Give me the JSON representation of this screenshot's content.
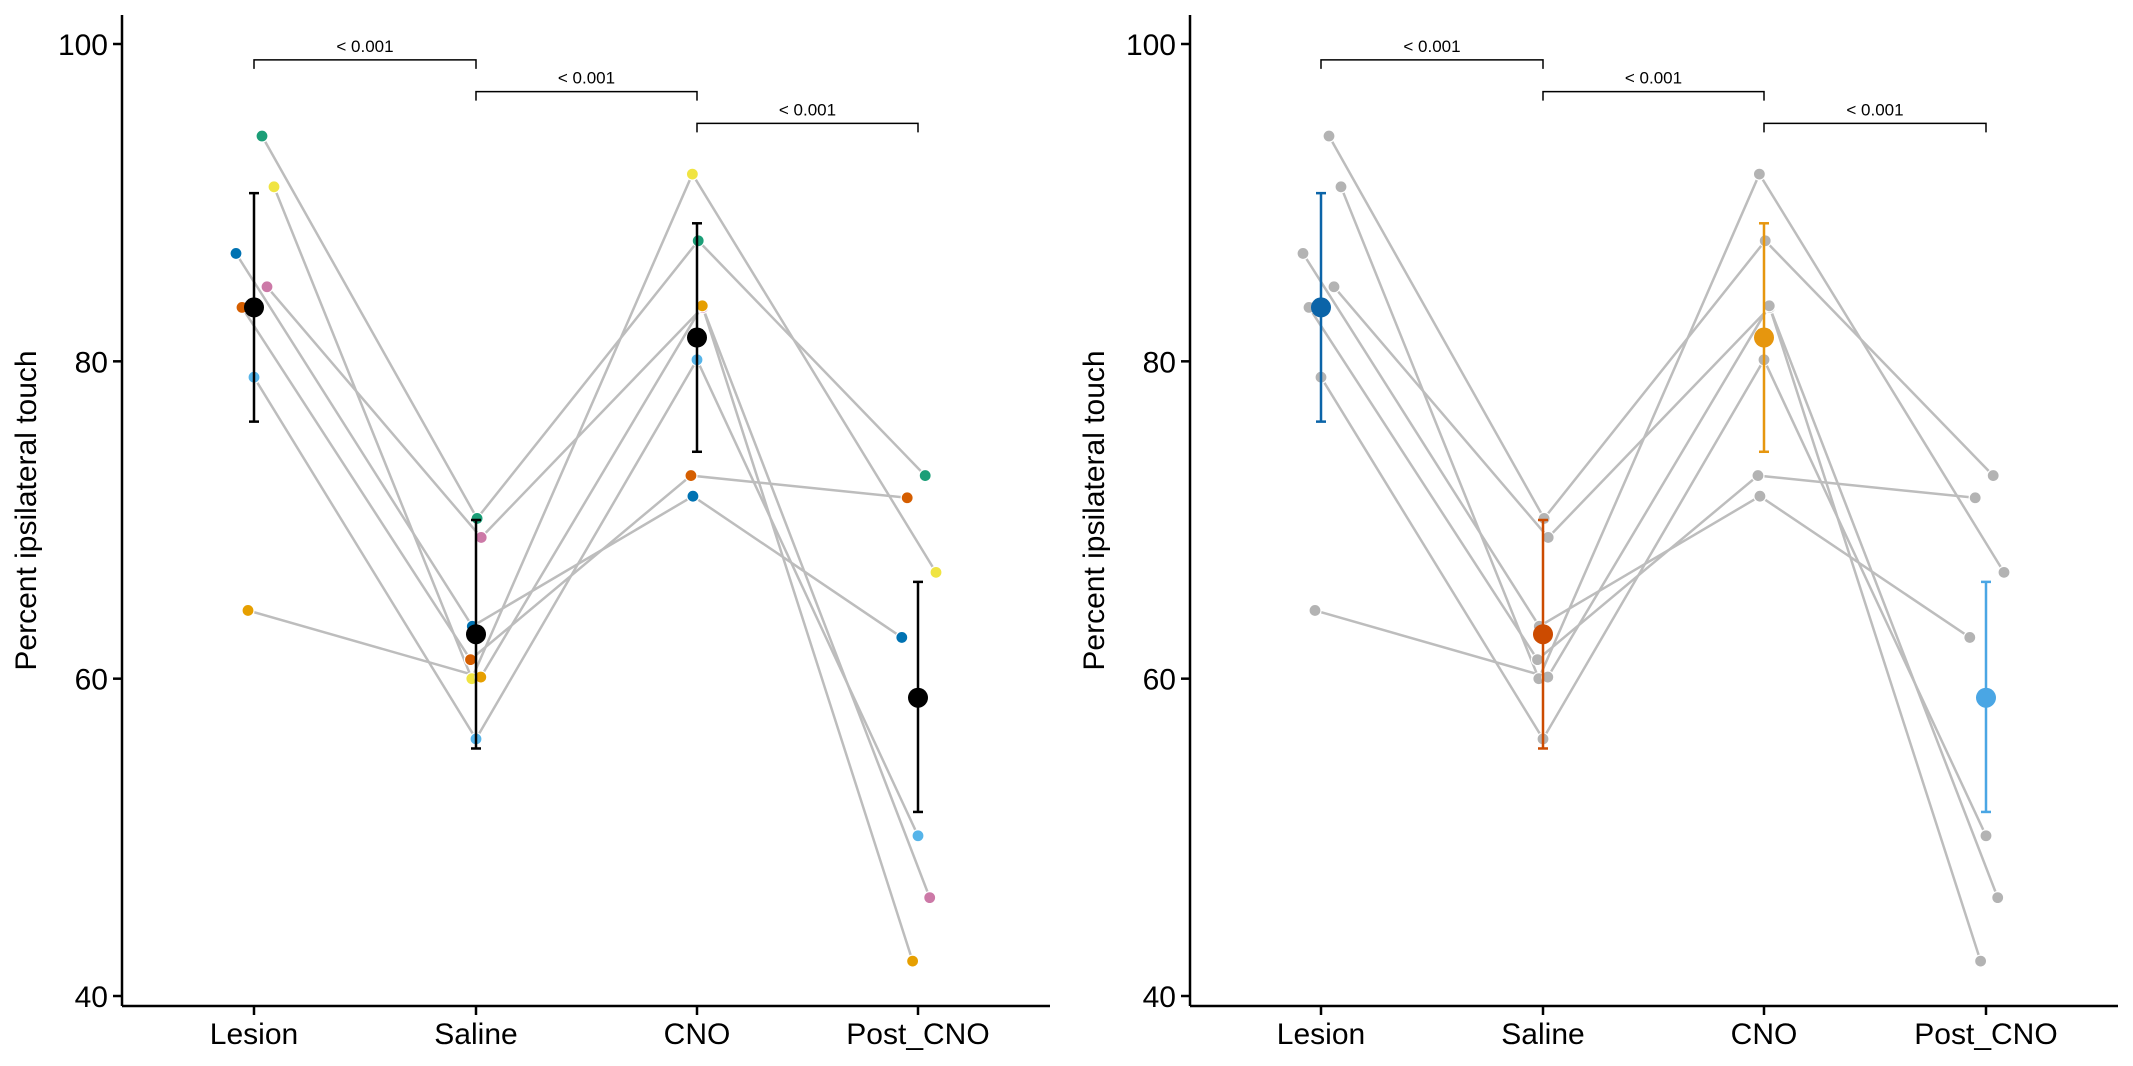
{
  "chart_data": [
    {
      "type": "scatter",
      "panel": "left",
      "title": "",
      "xlabel": "",
      "ylabel": "Percent ipsilateral touch",
      "categories": [
        "Lesion",
        "Saline",
        "CNO",
        "Post_CNO"
      ],
      "ylim": [
        39,
        102
      ],
      "yticks": [
        40,
        60,
        80,
        100
      ],
      "grid": false,
      "legend": "none",
      "subjects": [
        {
          "color": "#1b9e77",
          "values": [
            94.2,
            70.1,
            87.6,
            72.8
          ]
        },
        {
          "color": "#f0e442",
          "values": [
            91.0,
            60.0,
            91.8,
            66.7
          ]
        },
        {
          "color": "#0072b2",
          "values": [
            86.8,
            63.3,
            71.5,
            62.6
          ]
        },
        {
          "color": "#cc79a7",
          "values": [
            84.7,
            68.9,
            83.4,
            46.2
          ]
        },
        {
          "color": "#d55e00",
          "values": [
            83.4,
            61.2,
            72.8,
            71.4
          ]
        },
        {
          "color": "#56b4e9",
          "values": [
            79.0,
            56.2,
            80.1,
            50.1
          ]
        },
        {
          "color": "#e69f00",
          "values": [
            64.3,
            60.1,
            83.5,
            42.2
          ]
        }
      ],
      "means": [
        83.4,
        62.8,
        81.5,
        58.8
      ],
      "error_lower": [
        76.2,
        55.6,
        74.3,
        51.6
      ],
      "error_upper": [
        90.6,
        70.0,
        88.7,
        66.1
      ],
      "mean_colors": [
        "#000000",
        "#000000",
        "#000000",
        "#000000"
      ],
      "subject_style": "colored",
      "comparisons": [
        {
          "from": 0,
          "to": 1,
          "label": "< 0.001",
          "y": 99.0
        },
        {
          "from": 1,
          "to": 2,
          "label": "< 0.001",
          "y": 97.0
        },
        {
          "from": 2,
          "to": 3,
          "label": "< 0.001",
          "y": 95.0
        }
      ]
    },
    {
      "type": "scatter",
      "panel": "right",
      "title": "",
      "xlabel": "",
      "ylabel": "Percent ipsilateral touch",
      "categories": [
        "Lesion",
        "Saline",
        "CNO",
        "Post_CNO"
      ],
      "ylim": [
        39,
        102
      ],
      "yticks": [
        40,
        60,
        80,
        100
      ],
      "grid": false,
      "legend": "none",
      "subjects": [
        {
          "color": "#b3b3b3",
          "values": [
            94.2,
            70.1,
            87.6,
            72.8
          ]
        },
        {
          "color": "#b3b3b3",
          "values": [
            91.0,
            60.0,
            91.8,
            66.7
          ]
        },
        {
          "color": "#b3b3b3",
          "values": [
            86.8,
            63.3,
            71.5,
            62.6
          ]
        },
        {
          "color": "#b3b3b3",
          "values": [
            84.7,
            68.9,
            83.4,
            46.2
          ]
        },
        {
          "color": "#b3b3b3",
          "values": [
            83.4,
            61.2,
            72.8,
            71.4
          ]
        },
        {
          "color": "#b3b3b3",
          "values": [
            79.0,
            56.2,
            80.1,
            50.1
          ]
        },
        {
          "color": "#b3b3b3",
          "values": [
            64.3,
            60.1,
            83.5,
            42.2
          ]
        }
      ],
      "means": [
        83.4,
        62.8,
        81.5,
        58.8
      ],
      "error_lower": [
        76.2,
        55.6,
        74.3,
        51.6
      ],
      "error_upper": [
        90.6,
        70.0,
        88.7,
        66.1
      ],
      "mean_colors": [
        "#0b64a8",
        "#cc4b00",
        "#e6960e",
        "#4aa6e4"
      ],
      "subject_style": "gray",
      "comparisons": [
        {
          "from": 0,
          "to": 1,
          "label": "< 0.001",
          "y": 99.0
        },
        {
          "from": 1,
          "to": 2,
          "label": "< 0.001",
          "y": 97.0
        },
        {
          "from": 2,
          "to": 3,
          "label": "< 0.001",
          "y": 95.0
        }
      ]
    }
  ],
  "colors": {
    "connector_line": "#bdbdbd",
    "axis": "#000000",
    "text": "#000000"
  }
}
